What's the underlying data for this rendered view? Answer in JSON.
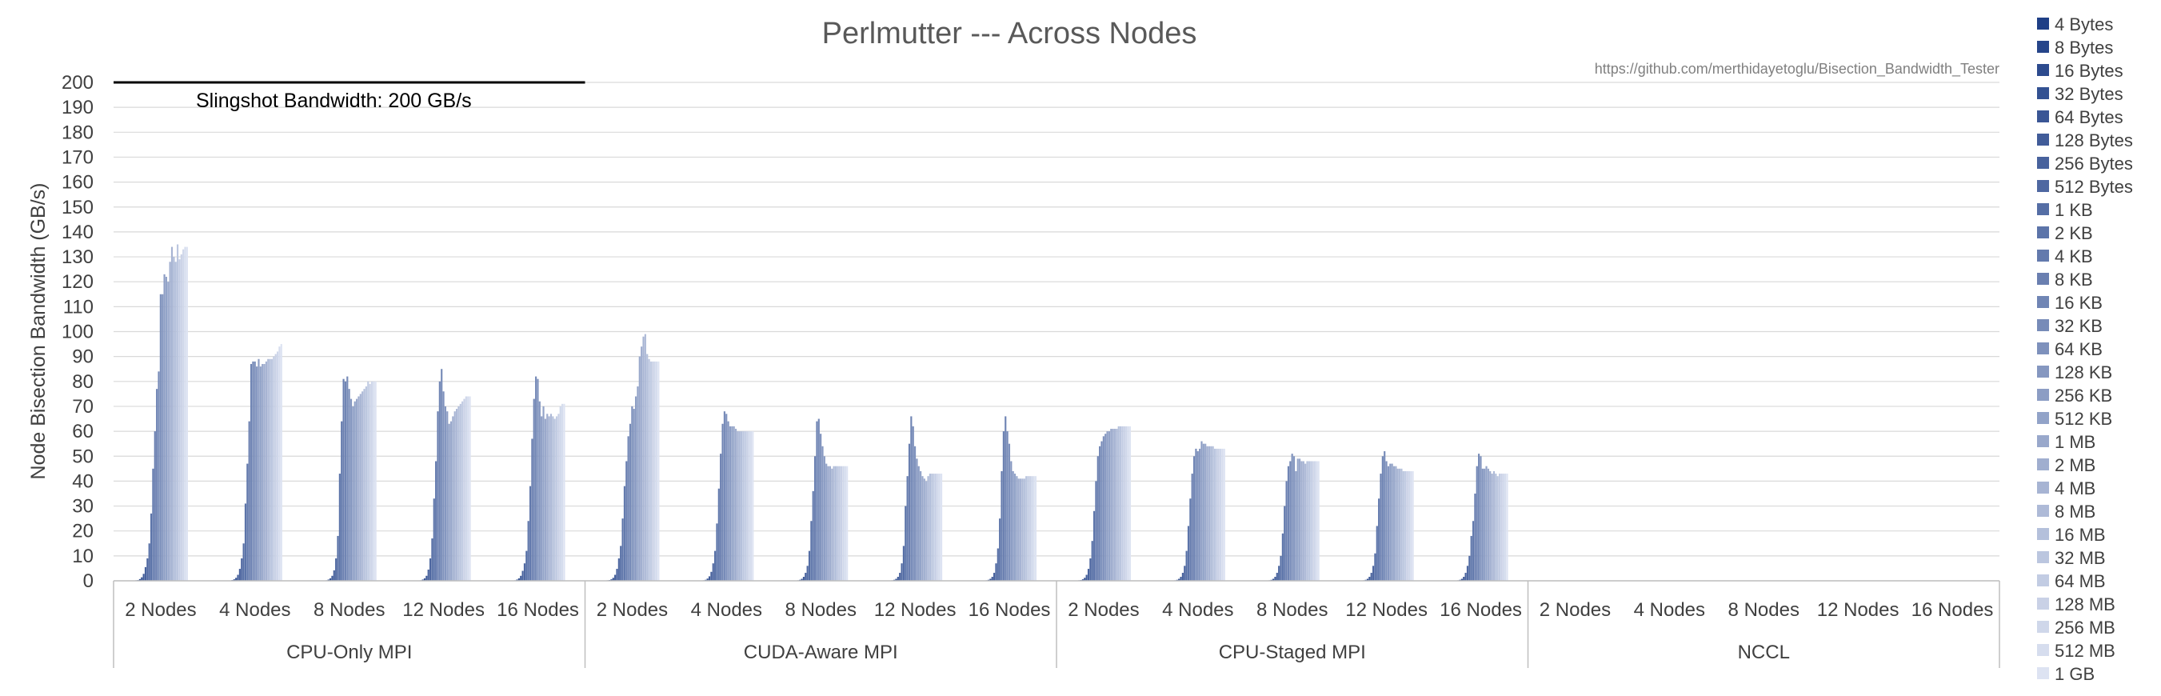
{
  "chart_data": {
    "type": "bar",
    "title": "Perlmutter --- Across Nodes",
    "source_url": "https://github.com/merthidayetoglu/Bisection_Bandwidth_Tester",
    "ylabel": "Node Bisection Bandwidth (GB/s)",
    "ylim": [
      0,
      200
    ],
    "yticks": [
      0,
      10,
      20,
      30,
      40,
      50,
      60,
      70,
      80,
      90,
      100,
      110,
      120,
      130,
      140,
      150,
      160,
      170,
      180,
      190,
      200
    ],
    "grid": true,
    "legend_position": "right",
    "annotation": {
      "text": "Slingshot Bandwidth: 200 GB/s",
      "value": 200
    },
    "groups": [
      "CPU-Only MPI",
      "CUDA-Aware MPI",
      "CPU-Staged MPI",
      "NCCL"
    ],
    "categories": [
      "2 Nodes",
      "4 Nodes",
      "8 Nodes",
      "12 Nodes",
      "16 Nodes"
    ],
    "series_names": [
      "4 Bytes",
      "8 Bytes",
      "16 Bytes",
      "32 Bytes",
      "64 Bytes",
      "128 Bytes",
      "256 Bytes",
      "512 Bytes",
      "1 KB",
      "2 KB",
      "4 KB",
      "8 KB",
      "16 KB",
      "32 KB",
      "64 KB",
      "128 KB",
      "256 KB",
      "512 KB",
      "1 MB",
      "2 MB",
      "4 MB",
      "8 MB",
      "16 MB",
      "32 MB",
      "64 MB",
      "128 MB",
      "256 MB",
      "512 MB",
      "1 GB"
    ],
    "values": [
      [
        [
          0.1,
          0.2,
          0.3,
          0.7,
          1.4,
          2.8,
          5.5,
          9,
          15,
          27,
          45,
          60,
          77,
          84,
          115,
          115,
          123,
          122,
          120,
          128,
          134,
          130,
          128,
          135,
          129,
          131,
          133,
          134,
          134
        ],
        [
          0.1,
          0.1,
          0.3,
          0.6,
          1.2,
          2.4,
          4.8,
          9,
          15,
          31,
          47,
          64,
          87,
          88,
          88,
          86,
          89,
          86,
          87,
          87,
          88,
          89,
          89,
          89,
          90,
          91,
          92,
          94,
          95
        ],
        [
          0.1,
          0.1,
          0.2,
          0.5,
          1,
          2,
          4.2,
          9,
          18,
          43,
          64,
          81,
          80,
          82,
          77,
          73,
          70,
          72,
          73,
          74,
          75,
          76,
          77,
          78,
          80,
          79,
          80,
          80,
          80
        ],
        [
          0.1,
          0.1,
          0.2,
          0.5,
          1,
          2,
          4.5,
          9,
          17,
          33,
          48,
          68,
          80,
          85,
          76,
          70,
          68,
          63,
          64,
          66,
          68,
          69,
          70,
          71,
          72,
          73,
          74,
          74,
          74
        ],
        [
          0.1,
          0.1,
          0.2,
          0.5,
          1,
          2,
          4,
          7,
          12,
          24,
          38,
          57,
          73,
          82,
          81,
          72,
          66,
          70,
          65,
          67,
          66,
          67,
          66,
          65,
          66,
          67,
          70,
          71,
          71
        ]
      ],
      [
        [
          0.1,
          0.2,
          0.3,
          0.6,
          1.2,
          2.4,
          4.8,
          9,
          14,
          25,
          38,
          48,
          58,
          63,
          70,
          69,
          74,
          78,
          90,
          94,
          98,
          99,
          91,
          89,
          88,
          88,
          88,
          88,
          88
        ],
        [
          0.1,
          0.1,
          0.2,
          0.4,
          0.9,
          1.8,
          3.6,
          7,
          12,
          23,
          37,
          51,
          63,
          68,
          67,
          64,
          62,
          62,
          62,
          61,
          60,
          60,
          60,
          60,
          60,
          60,
          60,
          60,
          60
        ],
        [
          0.1,
          0.1,
          0.2,
          0.4,
          0.8,
          1.6,
          3.2,
          6,
          12,
          24,
          36,
          50,
          64,
          65,
          59,
          54,
          50,
          47,
          46,
          46,
          45,
          46,
          46,
          46,
          46,
          46,
          46,
          46,
          46
        ],
        [
          0.1,
          0.1,
          0.2,
          0.4,
          0.8,
          1.6,
          3.2,
          7,
          14,
          30,
          42,
          55,
          66,
          62,
          54,
          49,
          46,
          44,
          42,
          41,
          40,
          42,
          43,
          43,
          43,
          43,
          43,
          43,
          43
        ],
        [
          0.1,
          0.1,
          0.2,
          0.4,
          0.8,
          1.6,
          3.2,
          7,
          13,
          25,
          44,
          60,
          66,
          60,
          55,
          48,
          44,
          43,
          42,
          41,
          41,
          41,
          41,
          42,
          42,
          42,
          42,
          42,
          42
        ]
      ],
      [
        [
          0.1,
          0.2,
          0.3,
          0.6,
          1.2,
          2.4,
          4.8,
          9,
          16,
          28,
          40,
          50,
          54,
          56,
          58,
          59,
          60,
          60,
          61,
          61,
          61,
          61,
          62,
          62,
          62,
          62,
          62,
          62,
          62
        ],
        [
          0.1,
          0.1,
          0.2,
          0.4,
          0.8,
          1.6,
          3.2,
          6,
          12,
          22,
          33,
          43,
          50,
          53,
          52,
          53,
          56,
          55,
          55,
          54,
          54,
          54,
          54,
          53,
          53,
          53,
          53,
          53,
          53
        ],
        [
          0.1,
          0.1,
          0.2,
          0.4,
          0.8,
          1.6,
          3.2,
          6,
          10,
          19,
          30,
          40,
          46,
          48,
          51,
          50,
          44,
          49,
          49,
          48,
          48,
          47,
          48,
          48,
          48,
          48,
          48,
          48,
          48
        ],
        [
          0.1,
          0.1,
          0.2,
          0.4,
          0.8,
          1.6,
          3.2,
          6,
          11,
          22,
          33,
          43,
          50,
          52,
          48,
          46,
          47,
          47,
          46,
          46,
          45,
          45,
          45,
          44,
          44,
          44,
          44,
          44,
          44
        ],
        [
          0.1,
          0.1,
          0.2,
          0.4,
          0.8,
          1.6,
          3.2,
          6,
          10,
          18,
          24,
          35,
          46,
          51,
          50,
          45,
          45,
          46,
          45,
          44,
          43,
          44,
          43,
          42,
          43,
          43,
          43,
          43,
          43
        ]
      ],
      [
        [
          0,
          0,
          0,
          0,
          0,
          0,
          0,
          0,
          0,
          0,
          0,
          0,
          0,
          0,
          0,
          0,
          0,
          0,
          0,
          0,
          0,
          0,
          0,
          0,
          0,
          0,
          0,
          0,
          0
        ],
        [
          0,
          0,
          0,
          0,
          0,
          0,
          0,
          0,
          0,
          0,
          0,
          0,
          0,
          0,
          0,
          0,
          0,
          0,
          0,
          0,
          0,
          0,
          0,
          0,
          0,
          0,
          0,
          0,
          0
        ],
        [
          0,
          0,
          0,
          0,
          0,
          0,
          0,
          0,
          0,
          0,
          0,
          0,
          0,
          0,
          0,
          0,
          0,
          0,
          0,
          0,
          0,
          0,
          0,
          0,
          0,
          0,
          0,
          0,
          0
        ],
        [
          0,
          0,
          0,
          0,
          0,
          0,
          0,
          0,
          0,
          0,
          0,
          0,
          0,
          0,
          0,
          0,
          0,
          0,
          0,
          0,
          0,
          0,
          0,
          0,
          0,
          0,
          0,
          0,
          0
        ],
        [
          0,
          0,
          0,
          0,
          0,
          0,
          0,
          0,
          0,
          0,
          0,
          0,
          0,
          0,
          0,
          0,
          0,
          0,
          0,
          0,
          0,
          0,
          0,
          0,
          0,
          0,
          0,
          0,
          0
        ]
      ]
    ],
    "color_start": "#1f3f86",
    "color_end": "#dde3f2",
    "grid_color": "#d9d9d9",
    "axis_color": "#bfbfbf"
  }
}
